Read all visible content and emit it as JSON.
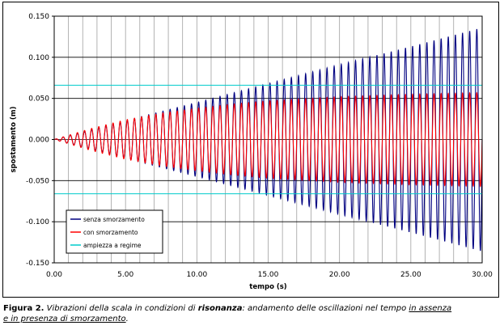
{
  "chart_data": {
    "type": "line",
    "title": "",
    "xlabel": "tempo (s)",
    "ylabel": "spostamento (m)",
    "xlim": [
      0,
      30
    ],
    "ylim": [
      -0.15,
      0.15
    ],
    "x_ticks": [
      0,
      5,
      10,
      15,
      20,
      25,
      30
    ],
    "x_tick_labels": [
      "0.00",
      "5.00",
      "10.00",
      "15.00",
      "20.00",
      "25.00",
      "30.00"
    ],
    "y_ticks": [
      0.15,
      0.1,
      0.05,
      0,
      -0.05,
      -0.1,
      -0.15
    ],
    "y_tick_labels": [
      "0.150",
      "0.100",
      "0.050",
      "0.000",
      "-0.050",
      "-0.100",
      "-0.150"
    ],
    "grid": true,
    "legend_position": "bottom-left",
    "oscillation_period": 0.5,
    "series": [
      {
        "name": "senza smorzamento",
        "color": "#000080",
        "envelope": {
          "x": [
            0,
            5,
            10,
            15,
            20,
            25,
            30
          ],
          "amplitude": [
            0,
            0.023,
            0.045,
            0.068,
            0.091,
            0.113,
            0.136
          ]
        }
      },
      {
        "name": "con smorzamento",
        "color": "#ff0000",
        "envelope": {
          "x": [
            0,
            2.5,
            5,
            7.5,
            10,
            12.5,
            15,
            20,
            25,
            30
          ],
          "amplitude": [
            0,
            0.013,
            0.024,
            0.032,
            0.038,
            0.043,
            0.047,
            0.052,
            0.055,
            0.057
          ]
        }
      },
      {
        "name": "ampiezza a regime",
        "color": "#00cccc",
        "values": [
          0.066,
          -0.066
        ]
      }
    ]
  },
  "caption": {
    "label": "Figura 2.",
    "text_1": " Vibrazioni della scala in condizioni di ",
    "emphasis": "risonanza",
    "text_2": ": andamento delle oscillazioni nel tempo ",
    "underlined_1": "in assenza",
    "underlined_2": "e in presenza di smorzamento",
    "end": "."
  }
}
